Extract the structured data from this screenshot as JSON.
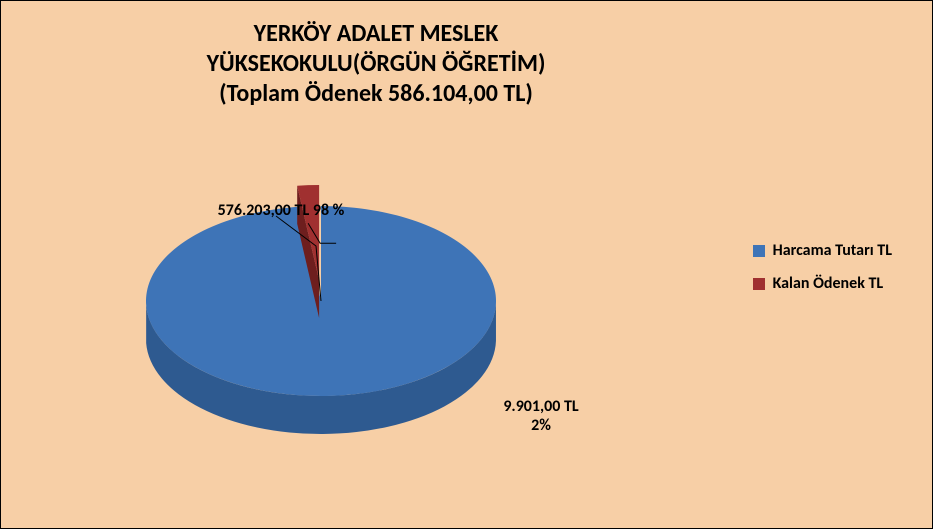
{
  "chart": {
    "type": "pie",
    "title_lines": [
      "YERKÖY ADALET MESLEK",
      "YÜKSEKOKULU(ÖRGÜN ÖĞRETİM)",
      "(Toplam Ödenek 586.104,00 TL)"
    ],
    "title_fontsize": 24,
    "background_color": "#f7cfa6",
    "slices": [
      {
        "label": "Harcama Tutarı TL",
        "value": 576203.0,
        "percent": 98,
        "display": "576.203,00 TL 98 %",
        "color": "#3e74b7",
        "side_color": "#2e5a90"
      },
      {
        "label": "Kalan Ödenek TL",
        "value": 9901.0,
        "percent": 2,
        "display": "9.901,00 TL\n2%",
        "color": "#a03030",
        "side_color": "#6e1e1e"
      }
    ],
    "label_fontsize": 16,
    "legend_fontsize": 16
  }
}
